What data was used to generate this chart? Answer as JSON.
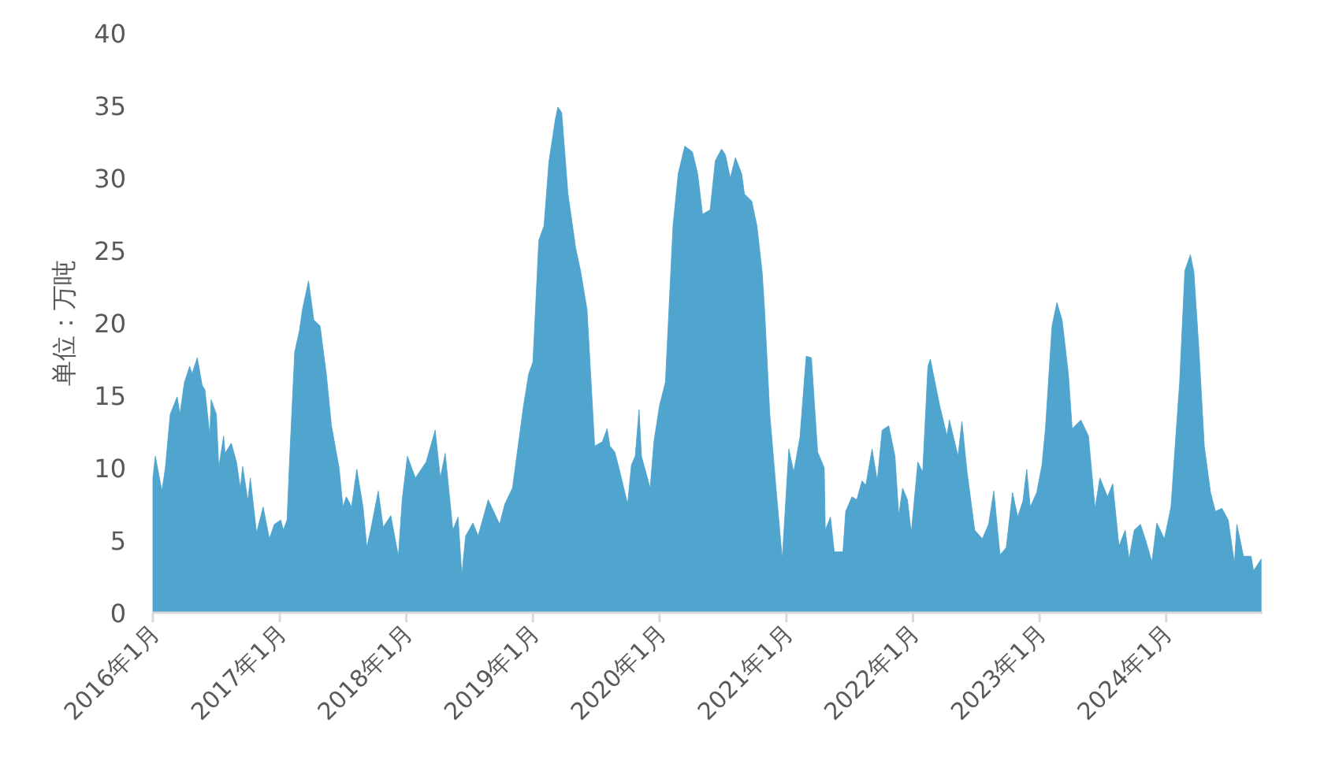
{
  "chart_data": {
    "type": "area",
    "ylabel": "单位：万吨",
    "xlim": [
      "2016-01-01",
      "2024-10-05"
    ],
    "xticks": [
      {
        "value": "2016-01-01",
        "label": "2016年1月"
      },
      {
        "value": "2017-01-01",
        "label": "2017年1月"
      },
      {
        "value": "2018-01-01",
        "label": "2018年1月"
      },
      {
        "value": "2019-01-01",
        "label": "2019年1月"
      },
      {
        "value": "2020-01-01",
        "label": "2020年1月"
      },
      {
        "value": "2021-01-01",
        "label": "2021年1月"
      },
      {
        "value": "2022-01-01",
        "label": "2022年1月"
      },
      {
        "value": "2023-01-01",
        "label": "2023年1月"
      },
      {
        "value": "2024-01-01",
        "label": "2024年1月"
      }
    ],
    "ylim": [
      0,
      40
    ],
    "yticks": [
      0,
      5,
      10,
      15,
      20,
      25,
      30,
      35,
      40
    ],
    "series": [
      {
        "color": "#47a0cc",
        "x": [
          "2016-01-01",
          "2016-01-08",
          "2016-01-27",
          "2016-02-06",
          "2016-02-20",
          "2016-03-11",
          "2016-03-19",
          "2016-04-01",
          "2016-04-16",
          "2016-04-23",
          "2016-05-08",
          "2016-05-22",
          "2016-05-30",
          "2016-06-13",
          "2016-06-17",
          "2016-07-02",
          "2016-07-09",
          "2016-07-23",
          "2016-07-27",
          "2016-08-14",
          "2016-08-29",
          "2016-09-09",
          "2016-09-16",
          "2016-10-01",
          "2016-10-08",
          "2016-10-26",
          "2016-11-14",
          "2016-12-02",
          "2016-12-16",
          "2017-01-04",
          "2017-01-11",
          "2017-01-22",
          "2017-01-29",
          "2017-02-13",
          "2017-02-27",
          "2017-03-07",
          "2017-03-25",
          "2017-04-09",
          "2017-04-27",
          "2017-05-15",
          "2017-05-30",
          "2017-06-21",
          "2017-07-02",
          "2017-07-12",
          "2017-07-27",
          "2017-08-11",
          "2017-08-29",
          "2017-09-09",
          "2017-09-20",
          "2017-10-12",
          "2017-10-26",
          "2017-11-17",
          "2017-12-09",
          "2017-12-20",
          "2018-01-04",
          "2018-01-27",
          "2018-02-27",
          "2018-03-25",
          "2018-04-09",
          "2018-04-23",
          "2018-05-15",
          "2018-05-30",
          "2018-06-10",
          "2018-06-21",
          "2018-07-12",
          "2018-07-27",
          "2018-08-25",
          "2018-09-27",
          "2018-10-12",
          "2018-11-03",
          "2018-11-17",
          "2018-12-05",
          "2018-12-20",
          "2019-01-01",
          "2019-01-18",
          "2019-02-02",
          "2019-02-16",
          "2019-03-07",
          "2019-03-14",
          "2019-03-25",
          "2019-04-12",
          "2019-05-04",
          "2019-05-19",
          "2019-06-06",
          "2019-06-28",
          "2019-07-20",
          "2019-08-03",
          "2019-08-11",
          "2019-08-25",
          "2019-09-09",
          "2019-10-01",
          "2019-10-12",
          "2019-10-23",
          "2019-11-03",
          "2019-11-10",
          "2019-12-05",
          "2019-12-16",
          "2020-01-01",
          "2020-01-18",
          "2020-02-09",
          "2020-02-24",
          "2020-03-14",
          "2020-04-05",
          "2020-04-20",
          "2020-05-04",
          "2020-05-26",
          "2020-06-10",
          "2020-06-28",
          "2020-07-09",
          "2020-07-23",
          "2020-08-07",
          "2020-08-25",
          "2020-09-02",
          "2020-09-23",
          "2020-10-08",
          "2020-10-23",
          "2020-10-30",
          "2020-11-14",
          "2020-12-02",
          "2020-12-20",
          "2021-01-08",
          "2021-01-22",
          "2021-02-09",
          "2021-02-27",
          "2021-03-14",
          "2021-04-01",
          "2021-04-20",
          "2021-04-23",
          "2021-05-08",
          "2021-05-19",
          "2021-06-13",
          "2021-06-21",
          "2021-07-09",
          "2021-07-23",
          "2021-08-07",
          "2021-08-18",
          "2021-09-05",
          "2021-09-20",
          "2021-10-04",
          "2021-10-23",
          "2021-11-10",
          "2021-11-21",
          "2021-12-02",
          "2021-12-16",
          "2021-12-27",
          "2022-01-15",
          "2022-01-29",
          "2022-02-13",
          "2022-02-20",
          "2022-03-19",
          "2022-04-09",
          "2022-04-16",
          "2022-05-11",
          "2022-05-22",
          "2022-06-06",
          "2022-06-28",
          "2022-07-20",
          "2022-08-07",
          "2022-08-22",
          "2022-09-09",
          "2022-09-27",
          "2022-10-15",
          "2022-10-30",
          "2022-11-14",
          "2022-11-25",
          "2022-12-05",
          "2022-12-24",
          "2023-01-08",
          "2023-01-18",
          "2023-02-06",
          "2023-02-20",
          "2023-03-07",
          "2023-03-25",
          "2023-04-05",
          "2023-04-30",
          "2023-05-22",
          "2023-06-10",
          "2023-06-24",
          "2023-07-16",
          "2023-07-31",
          "2023-08-18",
          "2023-09-05",
          "2023-09-16",
          "2023-10-01",
          "2023-10-19",
          "2023-11-03",
          "2023-11-21",
          "2023-12-05",
          "2023-12-27",
          "2024-01-15",
          "2024-01-27",
          "2024-02-09",
          "2024-02-24",
          "2024-03-11",
          "2024-03-21",
          "2024-04-05",
          "2024-04-20",
          "2024-05-08",
          "2024-05-22",
          "2024-06-10",
          "2024-06-28",
          "2024-07-16",
          "2024-07-23",
          "2024-08-11",
          "2024-09-02",
          "2024-09-09",
          "2024-10-01"
        ],
        "values": [
          9.3,
          10.8,
          8.4,
          10,
          13.7,
          14.9,
          13.7,
          15.9,
          17,
          16.5,
          17.6,
          15.7,
          15.4,
          12.2,
          14.7,
          13.7,
          10,
          12.2,
          11,
          11.7,
          10.4,
          8.6,
          10.1,
          7.7,
          9.3,
          5.5,
          7.3,
          5.1,
          6.1,
          6.4,
          5.7,
          6.4,
          10.4,
          18,
          19.5,
          20.9,
          22.9,
          20.2,
          19.8,
          16.5,
          12.9,
          10,
          7.3,
          8,
          7.3,
          9.9,
          7.3,
          4.5,
          5.7,
          8.4,
          5.9,
          6.7,
          3.9,
          7.8,
          10.8,
          9.3,
          10.4,
          12.6,
          9.3,
          11,
          5.7,
          6.6,
          2.6,
          5.3,
          6.2,
          5.3,
          7.8,
          6.1,
          7.5,
          8.6,
          11.1,
          14.3,
          16.5,
          17.3,
          25.7,
          26.7,
          31.1,
          34.1,
          34.9,
          34.5,
          28.9,
          25.2,
          23.5,
          20.9,
          11.5,
          11.8,
          12.7,
          11.5,
          11.1,
          9.7,
          7.5,
          10.2,
          10.8,
          14,
          10.8,
          8.6,
          11.8,
          14.3,
          15.9,
          26.7,
          30.3,
          32.2,
          31.8,
          30.3,
          27.5,
          27.8,
          31.2,
          32,
          31.6,
          30,
          31.4,
          30.3,
          28.9,
          28.4,
          26.7,
          23.5,
          20.9,
          13.7,
          8.6,
          3.7,
          11.3,
          9.7,
          12.1,
          17.7,
          17.6,
          11.1,
          10,
          5.7,
          6.6,
          4.2,
          4.2,
          7,
          8,
          7.8,
          9.1,
          8.8,
          11.3,
          9.1,
          12.6,
          12.9,
          10.8,
          6.7,
          8.6,
          7.8,
          5.5,
          10.4,
          9.7,
          17,
          17.5,
          14.3,
          12.2,
          13.3,
          10.8,
          13.2,
          9.7,
          5.7,
          5.1,
          6.1,
          8.4,
          4,
          4.5,
          8.3,
          6.6,
          7.7,
          9.9,
          7.3,
          8.3,
          10.2,
          12.7,
          19.8,
          21.4,
          20.2,
          16.5,
          12.7,
          13.3,
          12.2,
          7.2,
          9.3,
          8,
          8.9,
          4.6,
          5.7,
          3.7,
          5.7,
          6.1,
          5,
          3.5,
          6.2,
          5.1,
          7.3,
          11.5,
          15.9,
          23.6,
          24.7,
          23.5,
          18,
          11.5,
          8.3,
          7,
          7.2,
          6.4,
          3.4,
          6.1,
          3.9,
          3.9,
          2.9,
          3.7
        ]
      }
    ]
  }
}
